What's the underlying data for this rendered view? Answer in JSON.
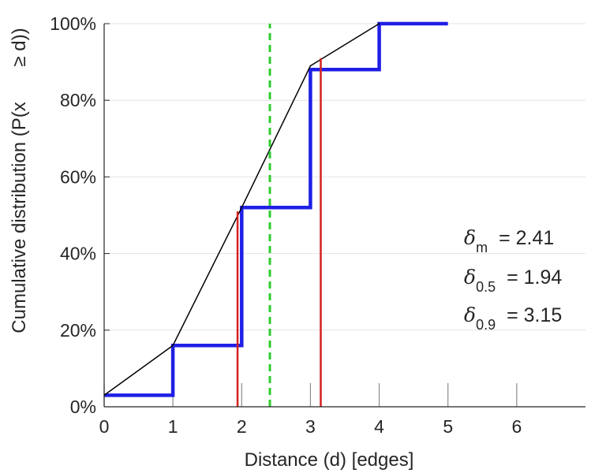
{
  "chart_data": {
    "type": "line",
    "xlabel": "Distance (d) [edges]",
    "ylabel": "Cumulative distribution (P(x ≥ d))",
    "ylabel_lines": [
      "Cumulative distribution (P(x",
      "≥ d))"
    ],
    "x_ticks": [
      "0",
      "1",
      "2",
      "3",
      "4",
      "5",
      "6"
    ],
    "y_ticks": [
      "0%",
      "20%",
      "40%",
      "60%",
      "80%",
      "100%"
    ],
    "xlim": [
      0,
      7
    ],
    "ylim": [
      0,
      100
    ],
    "grid": "horizontal",
    "series": [
      {
        "style": "step",
        "color": "#1f1fe6",
        "x": [
          0,
          1,
          2,
          3,
          4,
          5
        ],
        "y": [
          3,
          16,
          52,
          88,
          100,
          100
        ]
      },
      {
        "style": "line",
        "color": "#000000",
        "x": [
          0,
          1,
          2,
          3,
          4
        ],
        "y": [
          3,
          16,
          52,
          89,
          100
        ]
      }
    ],
    "vertical_lines": [
      {
        "x": 1.94,
        "y_top": 51,
        "color": "#d42020",
        "style": "solid"
      },
      {
        "x": 3.15,
        "y_top": 91,
        "color": "#d42020",
        "style": "solid"
      },
      {
        "x": 2.41,
        "y_top": 100,
        "color": "#2ecc2e",
        "style": "dashed"
      }
    ],
    "annotations": [
      {
        "symbol": "δ",
        "subscript": "m",
        "text": "= 2.41"
      },
      {
        "symbol": "δ",
        "subscript": "0.5",
        "text": "= 1.94"
      },
      {
        "symbol": "δ",
        "subscript": "0.9",
        "text": "= 3.15"
      }
    ]
  }
}
